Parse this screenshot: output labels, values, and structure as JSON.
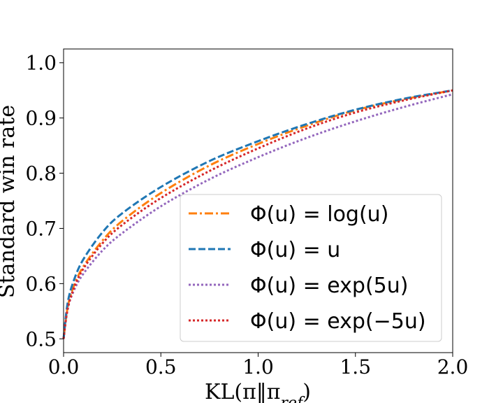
{
  "chart_data": {
    "type": "line",
    "title": "",
    "xlabel": "KL(π‖πref)",
    "xlabel_parts": {
      "main": "KL(π‖π",
      "sub": "ref",
      "close": ")"
    },
    "ylabel": "Standard win rate",
    "xlim": [
      0.0,
      2.0
    ],
    "ylim": [
      0.475,
      1.025
    ],
    "xticks": [
      0.0,
      0.5,
      1.0,
      1.5,
      2.0
    ],
    "xtick_labels": [
      "0.0",
      "0.5",
      "1.0",
      "1.5",
      "2.0"
    ],
    "yticks": [
      0.5,
      0.6,
      0.7,
      0.8,
      0.9,
      1.0
    ],
    "ytick_labels": [
      "0.5",
      "0.6",
      "0.7",
      "0.8",
      "0.9",
      "1.0"
    ],
    "grid": false,
    "legend_position": "lower-right",
    "series": [
      {
        "name": "Φ(u) = log(u)",
        "style": "dashdot",
        "color": "#ff7f0e",
        "x": [
          0.0,
          0.02,
          0.05,
          0.1,
          0.2,
          0.3,
          0.5,
          0.75,
          1.0,
          1.25,
          1.5,
          1.75,
          2.0
        ],
        "y": [
          0.5,
          0.555,
          0.593,
          0.63,
          0.678,
          0.713,
          0.764,
          0.814,
          0.853,
          0.886,
          0.914,
          0.934,
          0.95
        ]
      },
      {
        "name": "Φ(u) = u",
        "style": "dashed",
        "color": "#1f77b4",
        "x": [
          0.0,
          0.02,
          0.05,
          0.1,
          0.2,
          0.3,
          0.5,
          0.75,
          1.0,
          1.25,
          1.5,
          1.75,
          2.0
        ],
        "y": [
          0.5,
          0.563,
          0.603,
          0.643,
          0.693,
          0.727,
          0.775,
          0.822,
          0.858,
          0.889,
          0.915,
          0.935,
          0.95
        ]
      },
      {
        "name": "Φ(u) = exp(5u)",
        "style": "dotted",
        "color": "#9467bd",
        "x": [
          0.0,
          0.02,
          0.05,
          0.1,
          0.2,
          0.3,
          0.5,
          0.75,
          1.0,
          1.25,
          1.5,
          1.75,
          2.0
        ],
        "y": [
          0.5,
          0.552,
          0.585,
          0.617,
          0.66,
          0.691,
          0.74,
          0.789,
          0.829,
          0.864,
          0.894,
          0.92,
          0.943
        ]
      },
      {
        "name": "Φ(u) = exp(−5u)",
        "style": "dotted",
        "color": "#d62728",
        "x": [
          0.0,
          0.02,
          0.05,
          0.1,
          0.2,
          0.3,
          0.5,
          0.75,
          1.0,
          1.25,
          1.5,
          1.75,
          2.0
        ],
        "y": [
          0.5,
          0.552,
          0.589,
          0.626,
          0.673,
          0.706,
          0.755,
          0.804,
          0.845,
          0.881,
          0.91,
          0.932,
          0.95
        ]
      }
    ]
  }
}
